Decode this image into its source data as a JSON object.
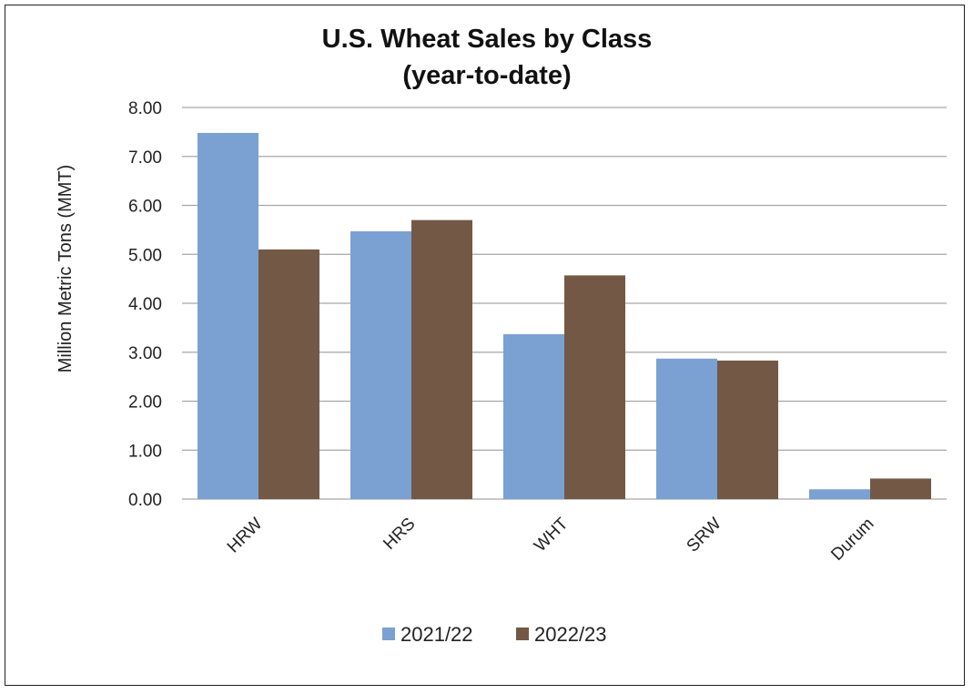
{
  "chart_data": {
    "type": "bar",
    "title": [
      "U.S. Wheat Sales by Class",
      "(year-to-date)"
    ],
    "ylabel": "Million Metric Tons (MMT)",
    "xlabel": "",
    "categories": [
      "HRW",
      "HRS",
      "WHT",
      "SRW",
      "Durum"
    ],
    "series": [
      {
        "name": "2021/22",
        "color": "#7ba0d2",
        "values": [
          7.48,
          5.47,
          3.37,
          2.87,
          0.2
        ]
      },
      {
        "name": "2022/23",
        "color": "#735945",
        "values": [
          5.1,
          5.7,
          4.57,
          2.83,
          0.42
        ]
      }
    ],
    "ylim": [
      0,
      8
    ],
    "yticks": [
      "0.00",
      "1.00",
      "2.00",
      "3.00",
      "4.00",
      "5.00",
      "6.00",
      "7.00",
      "8.00"
    ],
    "grid": true,
    "legend": "bottom"
  }
}
